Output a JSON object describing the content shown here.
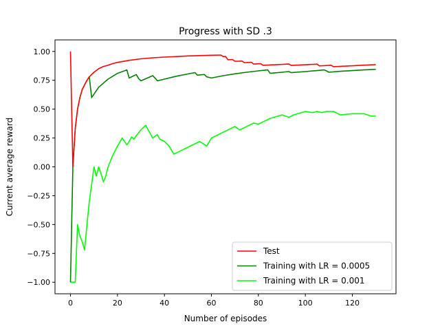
{
  "chart_data": {
    "type": "line",
    "title": "Progress with SD .3",
    "xlabel": "Number of episodes",
    "ylabel": "Current average reward",
    "xlim": [
      -6.6,
      138.6
    ],
    "ylim": [
      -1.1,
      1.1
    ],
    "xticks": [
      0,
      20,
      40,
      60,
      80,
      100,
      120
    ],
    "yticks": [
      -1.0,
      -0.75,
      -0.5,
      -0.25,
      0.0,
      0.25,
      0.5,
      0.75,
      1.0
    ],
    "xtick_labels": [
      "0",
      "20",
      "40",
      "60",
      "80",
      "100",
      "120"
    ],
    "ytick_labels": [
      "−1.00",
      "−0.75",
      "−0.50",
      "−0.25",
      "0.00",
      "0.25",
      "0.50",
      "0.75",
      "1.00"
    ],
    "grid": false,
    "legend_position": "lower-right",
    "series": [
      {
        "name": "Test",
        "color": "#ff0000",
        "x": [
          0,
          1,
          2,
          3,
          4,
          5,
          6,
          7,
          8,
          10,
          12,
          14,
          16,
          18,
          20,
          25,
          30,
          35,
          40,
          45,
          50,
          55,
          60,
          64,
          65,
          66,
          67,
          68,
          69,
          70,
          72,
          73,
          74,
          75,
          76,
          77,
          78,
          79,
          80,
          81,
          82,
          83,
          84,
          85,
          86,
          87,
          88,
          89,
          90,
          91,
          92,
          93,
          94,
          95,
          96,
          97,
          98,
          99,
          100,
          101,
          102,
          103,
          104,
          105,
          106,
          107,
          108,
          109,
          110,
          111,
          112,
          113,
          114,
          115,
          116,
          117,
          118,
          119,
          120,
          121,
          122,
          123,
          124,
          125,
          126,
          127,
          128,
          129,
          130
        ],
        "y": [
          1.0,
          0.0,
          0.33,
          0.5,
          0.6,
          0.67,
          0.71,
          0.75,
          0.78,
          0.82,
          0.85,
          0.87,
          0.88,
          0.895,
          0.905,
          0.923,
          0.936,
          0.945,
          0.951,
          0.956,
          0.961,
          0.964,
          0.967,
          0.969,
          0.956,
          0.957,
          0.928,
          0.929,
          0.93,
          0.915,
          0.916,
          0.917,
          0.903,
          0.904,
          0.905,
          0.906,
          0.891,
          0.892,
          0.893,
          0.894,
          0.88,
          0.881,
          0.882,
          0.883,
          0.884,
          0.885,
          0.886,
          0.887,
          0.888,
          0.889,
          0.89,
          0.891,
          0.879,
          0.88,
          0.881,
          0.882,
          0.883,
          0.884,
          0.885,
          0.886,
          0.887,
          0.888,
          0.889,
          0.89,
          0.875,
          0.876,
          0.877,
          0.878,
          0.879,
          0.88,
          0.868,
          0.869,
          0.87,
          0.871,
          0.872,
          0.873,
          0.874,
          0.875,
          0.876,
          0.877,
          0.878,
          0.879,
          0.88,
          0.881,
          0.882,
          0.883,
          0.884,
          0.885,
          0.886
        ]
      },
      {
        "name": "Training with LR = 0.0005",
        "color": "#008000",
        "x": [
          0,
          1,
          2,
          3,
          4,
          5,
          6,
          7,
          8,
          9,
          12,
          16,
          20,
          24,
          25,
          28,
          29,
          30,
          35,
          36,
          37,
          40,
          45,
          50,
          53,
          54,
          57,
          58,
          60,
          65,
          70,
          75,
          80,
          84,
          85,
          90,
          93,
          94,
          100,
          105,
          108,
          109,
          110,
          115,
          120,
          125,
          130
        ],
        "y": [
          -1.0,
          0.0,
          0.33,
          0.5,
          0.6,
          0.67,
          0.71,
          0.75,
          0.78,
          0.6,
          0.69,
          0.76,
          0.81,
          0.84,
          0.77,
          0.8,
          0.765,
          0.745,
          0.79,
          0.77,
          0.745,
          0.76,
          0.785,
          0.805,
          0.817,
          0.795,
          0.8,
          0.78,
          0.77,
          0.79,
          0.806,
          0.82,
          0.832,
          0.84,
          0.81,
          0.82,
          0.826,
          0.816,
          0.826,
          0.834,
          0.84,
          0.832,
          0.82,
          0.828,
          0.834,
          0.84,
          0.845
        ]
      },
      {
        "name": "Training with LR = 0.001",
        "color": "#00ff00",
        "x": [
          0,
          1,
          2,
          3,
          4,
          5,
          6,
          7,
          8,
          9,
          10,
          11,
          12,
          13,
          14,
          15,
          16,
          18,
          20,
          22,
          24,
          25,
          26,
          27,
          28,
          30,
          32,
          35,
          37,
          38,
          40,
          42,
          44,
          46,
          48,
          50,
          53,
          55,
          58,
          60,
          65,
          70,
          72,
          75,
          78,
          80,
          85,
          90,
          93,
          95,
          100,
          103,
          105,
          107,
          109,
          112,
          115,
          120,
          125,
          128,
          130
        ],
        "y": [
          -1.0,
          -1.0,
          -1.0,
          -0.5,
          -0.6,
          -0.65,
          -0.72,
          -0.5,
          -0.3,
          -0.15,
          0.0,
          -0.08,
          0.0,
          -0.06,
          -0.13,
          -0.08,
          0.0,
          0.1,
          0.18,
          0.25,
          0.19,
          0.22,
          0.26,
          0.24,
          0.27,
          0.32,
          0.36,
          0.25,
          0.28,
          0.24,
          0.22,
          0.18,
          0.11,
          0.13,
          0.15,
          0.17,
          0.2,
          0.22,
          0.18,
          0.25,
          0.3,
          0.35,
          0.32,
          0.35,
          0.38,
          0.37,
          0.42,
          0.45,
          0.43,
          0.45,
          0.48,
          0.47,
          0.48,
          0.47,
          0.48,
          0.48,
          0.45,
          0.46,
          0.46,
          0.44,
          0.44
        ]
      }
    ]
  }
}
